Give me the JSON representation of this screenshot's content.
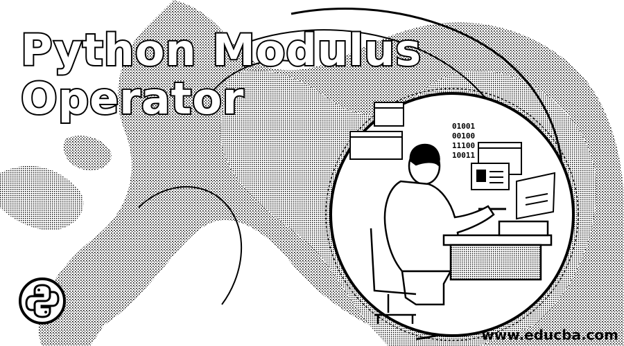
{
  "title": {
    "line1": "Python Modulus",
    "line2": "Operator"
  },
  "binary_lines": [
    "01001",
    "00100",
    "11100",
    "10011"
  ],
  "site_url": "www.educba.com",
  "logo_icon": "python-logo-icon",
  "illustration": "person-at-computer-illustration",
  "colors": {
    "background": "#ffffff",
    "ink": "#000000"
  }
}
